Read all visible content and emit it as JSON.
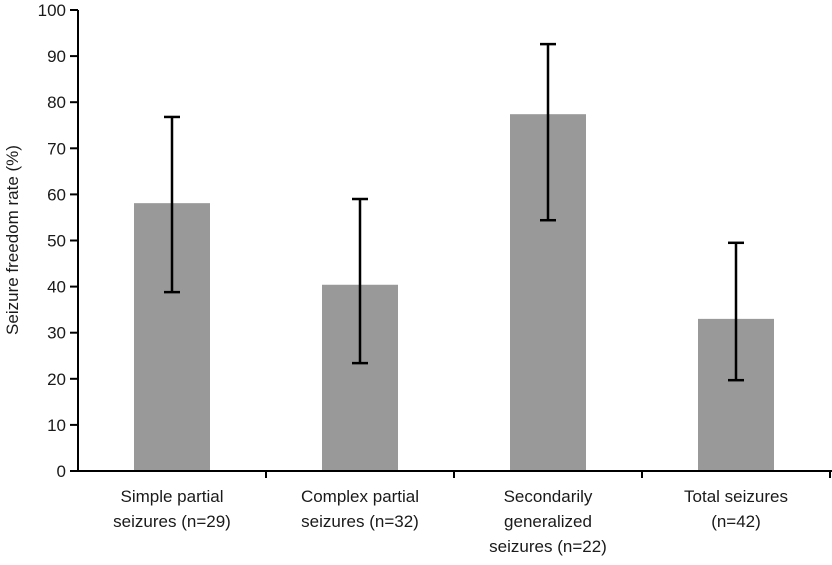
{
  "chart_data": {
    "type": "bar",
    "title": "",
    "xlabel": "",
    "ylabel": "Seizure freedom rate (%)",
    "ylim": [
      0,
      100
    ],
    "yticks": [
      0,
      10,
      20,
      30,
      40,
      50,
      60,
      70,
      80,
      90,
      100
    ],
    "grid": false,
    "legend": null,
    "categories": [
      [
        "Simple partial",
        "seizures (n=29)"
      ],
      [
        "Complex partial",
        "seizures (n=32)"
      ],
      [
        "Secondarily",
        "generalized",
        "seizures (n=22)"
      ],
      [
        "Total seizures",
        "(n=42)"
      ]
    ],
    "values": [
      58.1,
      40.4,
      77.4,
      33.0
    ],
    "error_low": [
      38.8,
      23.4,
      54.4,
      19.7
    ],
    "error_high": [
      76.8,
      59.0,
      92.6,
      49.5
    ],
    "colors": {
      "bar": "#999999",
      "error": "#000000",
      "axis": "#000000"
    }
  }
}
